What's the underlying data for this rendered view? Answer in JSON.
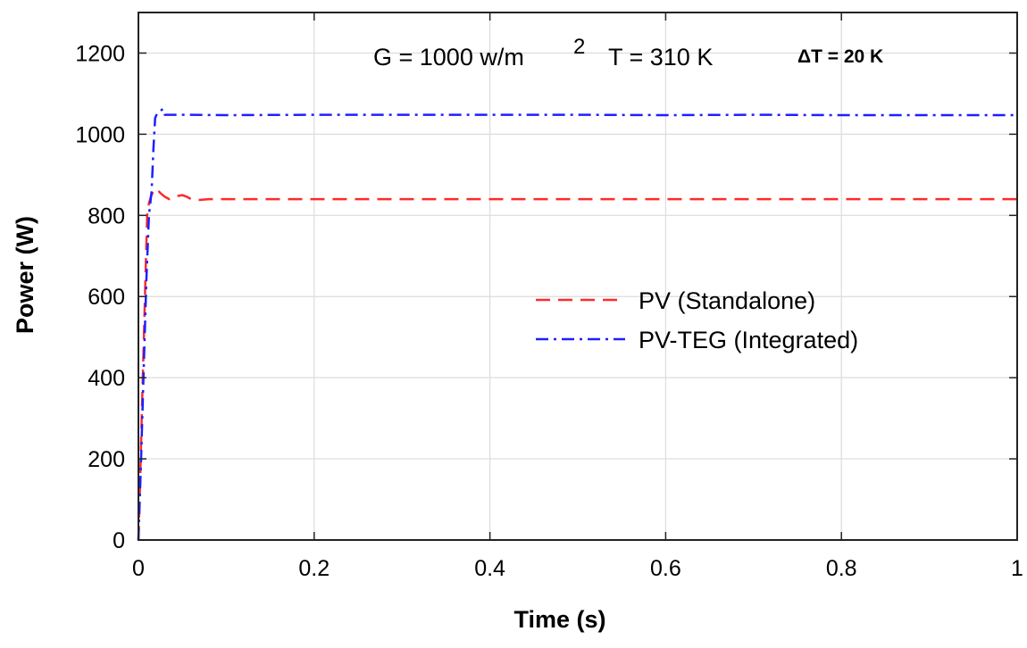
{
  "chart_data": {
    "type": "line",
    "title": "",
    "xlabel": "Time (s)",
    "ylabel": "Power (W)",
    "xlim": [
      0,
      1
    ],
    "ylim": [
      0,
      1300
    ],
    "xticks": [
      0,
      0.2,
      0.4,
      0.6,
      0.8,
      1
    ],
    "xtick_labels": [
      "0",
      "0.2",
      "0.4",
      "0.6",
      "0.8",
      "1"
    ],
    "yticks": [
      0,
      200,
      400,
      600,
      800,
      1000,
      1200
    ],
    "ytick_labels": [
      "0",
      "200",
      "400",
      "600",
      "800",
      "1000",
      "1200"
    ],
    "grid": true,
    "legend_position": "center-right",
    "annotations": {
      "g_label": "G = 1000 w/m",
      "g_exp": "2",
      "t_label": "T = 310 K",
      "dt_label": "ΔT = 20 K"
    },
    "series": [
      {
        "name": "PV (Standalone)",
        "color": "#ff2a2a",
        "style": "dashed",
        "x": [
          0,
          0.002,
          0.004,
          0.006,
          0.008,
          0.01,
          0.012,
          0.014,
          0.016,
          0.018,
          0.02,
          0.022,
          0.025,
          0.03,
          0.035,
          0.04,
          0.045,
          0.05,
          0.055,
          0.06,
          0.07,
          0.08,
          0.1,
          0.2,
          0.3,
          0.4,
          0.5,
          0.6,
          0.7,
          0.8,
          0.9,
          1.0
        ],
        "values": [
          0,
          150,
          320,
          480,
          650,
          800,
          830,
          845,
          855,
          862,
          866,
          862,
          855,
          846,
          840,
          843,
          848,
          850,
          846,
          840,
          838,
          840,
          840,
          840,
          840,
          840,
          840,
          840,
          840,
          840,
          840,
          840
        ]
      },
      {
        "name": "PV-TEG (Integrated)",
        "color": "#1f1fff",
        "style": "dashdot",
        "x": [
          0,
          0.003,
          0.006,
          0.009,
          0.012,
          0.015,
          0.017,
          0.019,
          0.021,
          0.023,
          0.025,
          0.028,
          0.03,
          0.035,
          0.05,
          0.1,
          0.2,
          0.3,
          0.4,
          0.5,
          0.6,
          0.7,
          0.8,
          0.9,
          1.0
        ],
        "values": [
          0,
          200,
          420,
          640,
          800,
          860,
          960,
          1040,
          1050,
          1052,
          1058,
          1062,
          1048,
          1048,
          1048,
          1047,
          1048,
          1048,
          1048,
          1048,
          1047,
          1048,
          1047,
          1047,
          1047
        ]
      }
    ]
  }
}
